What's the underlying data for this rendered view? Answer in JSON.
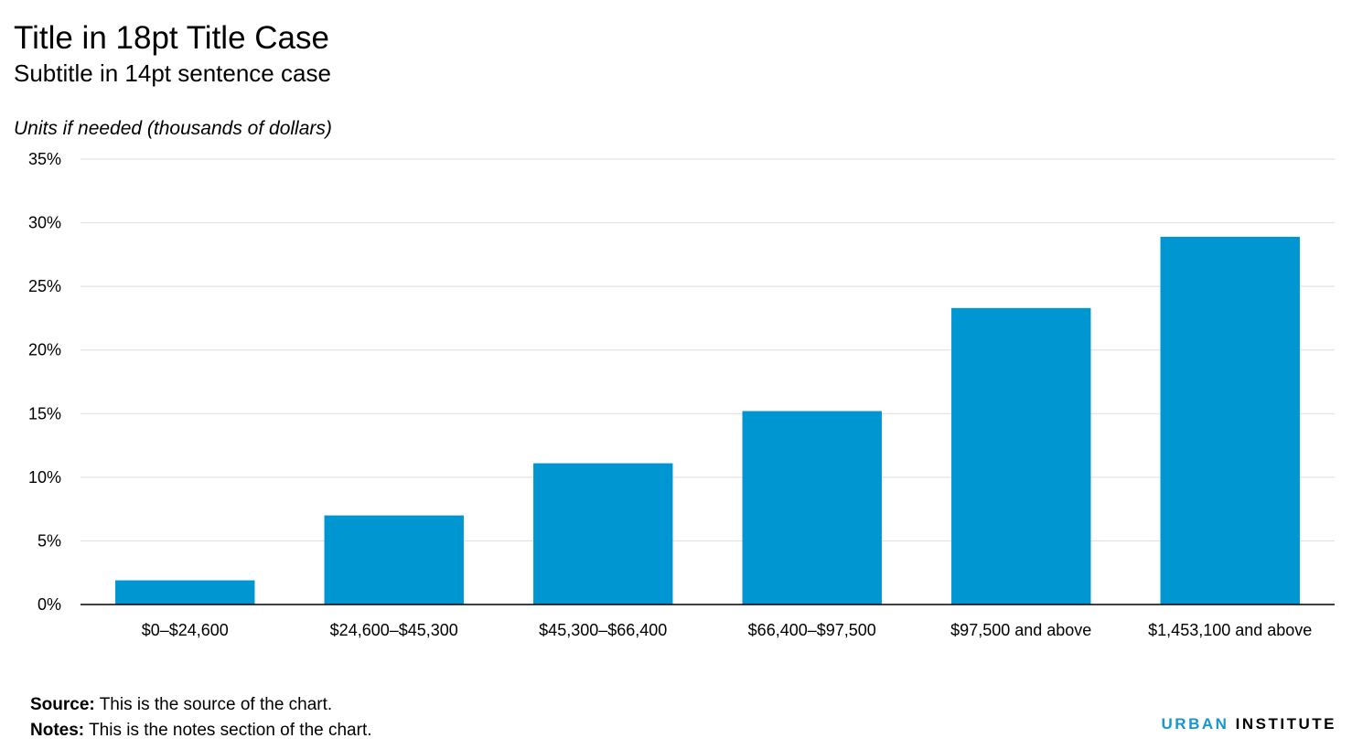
{
  "header": {
    "title": "Title in 18pt Title Case",
    "subtitle": "Subtitle in 14pt sentence case",
    "units": "Units if needed (thousands of dollars)"
  },
  "footer": {
    "source_label": "Source:",
    "source_text": "This is the source of the chart.",
    "notes_label": "Notes:",
    "notes_text": "This is the notes section of the chart.",
    "logo_part1": "URBAN",
    "logo_part2": "INSTITUTE"
  },
  "colors": {
    "bar": "#0096d2",
    "grid": "#dedddd",
    "axis": "#000000",
    "logo_accent": "#1696d2"
  },
  "chart_data": {
    "type": "bar",
    "categories": [
      "$0–$24,600",
      "$24,600–$45,300",
      "$45,300–$66,400",
      "$66,400–$97,500",
      "$97,500 and above",
      "$1,453,100 and above"
    ],
    "values": [
      1.9,
      7.0,
      11.1,
      15.2,
      23.3,
      28.9
    ],
    "ylim": [
      0,
      35
    ],
    "yticks": [
      0,
      5,
      10,
      15,
      20,
      25,
      30,
      35
    ],
    "ytick_labels": [
      "0%",
      "5%",
      "10%",
      "15%",
      "20%",
      "25%",
      "30%",
      "35%"
    ],
    "grid": true,
    "legend": "none"
  }
}
